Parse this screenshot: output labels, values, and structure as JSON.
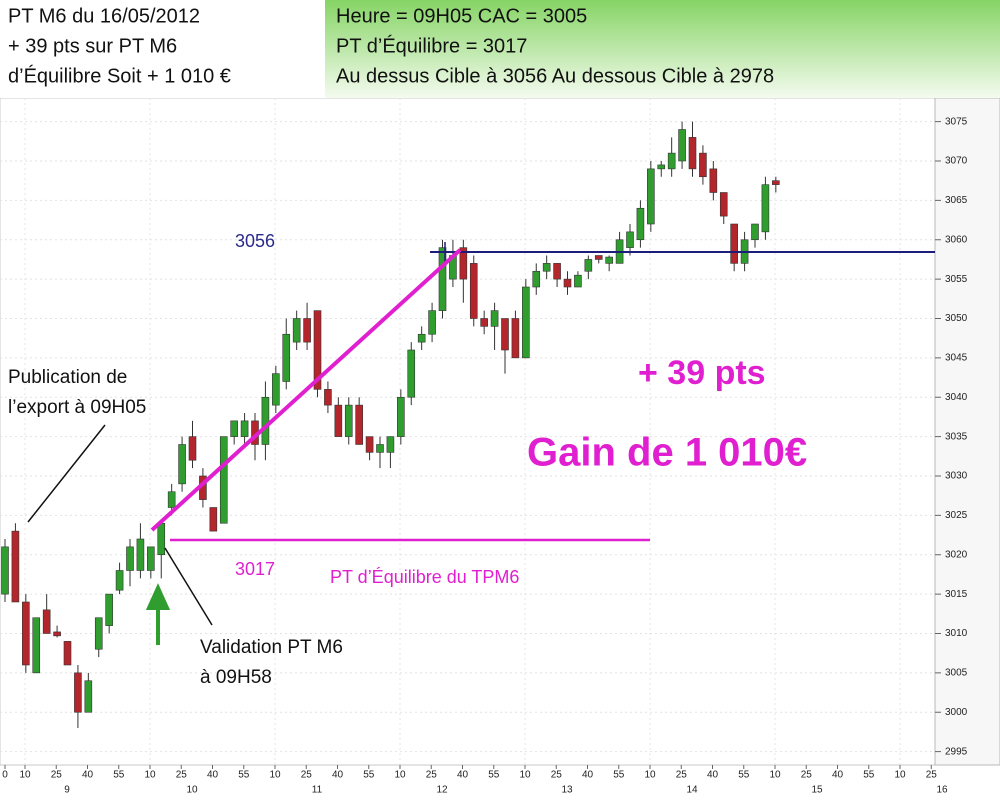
{
  "header": {
    "left_lines": [
      "PT M6 du 16/05/2012",
      "+ 39 pts sur PT M6",
      "d’Équilibre  Soit + 1 010 €"
    ],
    "right_lines": [
      "Heure = 09H05   CAC = 3005",
      "PT d’Équilibre = 3017",
      "Au dessus Cible à 3056 Au dessous Cible à 2978"
    ]
  },
  "annotations": {
    "target_label": "3056",
    "pivot_label": "3017",
    "pivot_text": "PT d’Équilibre du TPM6",
    "publication": [
      "Publication de",
      "l’export à 09H05"
    ],
    "validation": [
      "Validation PT M6",
      "à 09H58"
    ],
    "points": "+ 39 pts",
    "gain": "Gain de 1 010€"
  },
  "chart_data": {
    "type": "candlestick",
    "up_color": "#2f9e2f",
    "down_color": "#b3262b",
    "open": [
      3015,
      3023,
      3014,
      3005,
      3013,
      3010.2,
      3009,
      3005,
      3000,
      3008,
      3011,
      3015.5,
      3018,
      3018,
      3018,
      3020,
      3026,
      3029,
      3035,
      3030,
      3026,
      3024,
      3035,
      3035,
      3037,
      3034,
      3039,
      3042,
      3047,
      3050,
      3051,
      3041,
      3039,
      3035,
      3039,
      3035,
      3033,
      3033,
      3035,
      3040,
      3047,
      3048,
      3051,
      3055,
      3059,
      3057,
      3050,
      3049,
      3050,
      3050,
      3045,
      3054,
      3056,
      3057,
      3055,
      3054,
      3056,
      3058,
      3057,
      3057,
      3059,
      3060,
      3062,
      3069,
      3069,
      3070,
      3073,
      3071,
      3069,
      3066,
      3062,
      3057,
      3060,
      3061,
      3067.5
    ],
    "high": [
      3022,
      3024,
      3015,
      3012,
      3015,
      3011,
      3009,
      3006,
      3005,
      3012,
      3015,
      3019,
      3022,
      3024,
      3021,
      3024,
      3029,
      3035,
      3037,
      3031,
      3026,
      3035,
      3037,
      3038,
      3038,
      3042,
      3044,
      3050,
      3051,
      3052,
      3051,
      3042,
      3040,
      3040,
      3040,
      3035,
      3035,
      3035,
      3041,
      3047,
      3049,
      3052,
      3060,
      3060,
      3060,
      3058,
      3051,
      3052,
      3050,
      3051,
      3055,
      3057,
      3058,
      3057,
      3056,
      3056,
      3058,
      3058,
      3058,
      3061,
      3062,
      3065,
      3070,
      3070,
      3073,
      3075,
      3075,
      3072,
      3070,
      3066,
      3062,
      3061,
      3062,
      3068,
      3068
    ],
    "low": [
      3014,
      3014,
      3005,
      3005,
      3010,
      3009.5,
      3006,
      2998,
      3000,
      3007,
      3010,
      3015,
      3016,
      3017,
      3017,
      3017,
      3025,
      3028,
      3031,
      3026,
      3023,
      3024,
      3034,
      3034,
      3032,
      3032,
      3038,
      3041,
      3046,
      3046,
      3040,
      3038,
      3035,
      3034,
      3034,
      3032,
      3031,
      3031,
      3034,
      3039,
      3046,
      3047,
      3050,
      3054,
      3052,
      3049,
      3048,
      3046,
      3043,
      3045,
      3045,
      3053,
      3055,
      3054,
      3053,
      3054,
      3055,
      3057,
      3056,
      3057,
      3058,
      3059,
      3061,
      3068,
      3068,
      3069,
      3068,
      3067,
      3065,
      3062,
      3056,
      3056,
      3059,
      3060,
      3066
    ],
    "close": [
      3021,
      3014,
      3006,
      3012,
      3010,
      3009.7,
      3006,
      3000,
      3004,
      3012,
      3015,
      3018,
      3021,
      3022,
      3021,
      3024,
      3028,
      3034,
      3032,
      3027,
      3023,
      3035,
      3037,
      3037,
      3034,
      3040,
      3043,
      3048,
      3050,
      3047,
      3041,
      3039,
      3035,
      3039,
      3034,
      3033,
      3034,
      3035,
      3040,
      3046,
      3048,
      3051,
      3059,
      3058,
      3055,
      3050,
      3049,
      3051,
      3046,
      3045,
      3054,
      3056,
      3057,
      3055,
      3054,
      3055.5,
      3057.5,
      3057.5,
      3057.8,
      3060,
      3061,
      3064,
      3069,
      3069.5,
      3071,
      3074,
      3069,
      3068,
      3066,
      3063,
      3057,
      3060,
      3062,
      3067,
      3067
    ],
    "ylim": [
      2993.3,
      3078
    ],
    "yticks": [
      2995,
      3000,
      3005,
      3010,
      3015,
      3020,
      3025,
      3030,
      3035,
      3040,
      3045,
      3050,
      3055,
      3060,
      3065,
      3070,
      3075
    ],
    "minute_labels": [
      "0",
      "10",
      "25",
      "40",
      "55",
      "10",
      "25",
      "40",
      "55",
      "10",
      "25",
      "40",
      "55",
      "10",
      "25",
      "40",
      "55",
      "10",
      "25",
      "40",
      "55",
      "10",
      "25",
      "40",
      "55",
      "10",
      "25",
      "40",
      "55",
      "10",
      "25"
    ],
    "hour_labels": [
      "9",
      "10",
      "11",
      "12",
      "13",
      "14",
      "15",
      "16"
    ],
    "grid": true
  }
}
